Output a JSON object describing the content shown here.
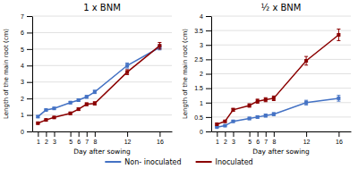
{
  "chart_data": [
    {
      "type": "line",
      "title": "1 x BNM",
      "x": [
        1,
        2,
        3,
        5,
        6,
        7,
        8,
        12,
        16
      ],
      "xlabel": "Day after sowing",
      "ylabel": "Length of the main root (cm)",
      "xlim": [
        0.3,
        17.5
      ],
      "xticks": [
        1,
        2,
        3,
        5,
        6,
        7,
        8,
        12,
        16
      ],
      "ylim": [
        0,
        7
      ],
      "yticks": [
        0,
        1,
        2,
        3,
        4,
        5,
        6,
        7
      ],
      "grid": "y",
      "legend": "bottom",
      "marker": "square",
      "series": [
        {
          "name": "Non- inoculated",
          "color": "#4472C4",
          "values": [
            0.9,
            1.3,
            1.4,
            1.75,
            1.9,
            2.1,
            2.4,
            4.0,
            5.1
          ],
          "errors": [
            0.05,
            0.05,
            0.05,
            0.07,
            0.07,
            0.08,
            0.1,
            0.15,
            0.15
          ]
        },
        {
          "name": "Inoculated",
          "color": "#8B0000",
          "values": [
            0.5,
            0.7,
            0.85,
            1.1,
            1.35,
            1.65,
            1.7,
            3.6,
            5.2
          ],
          "errors": [
            0.05,
            0.05,
            0.05,
            0.07,
            0.07,
            0.08,
            0.1,
            0.15,
            0.2
          ]
        }
      ]
    },
    {
      "type": "line",
      "title": "½ x BNM",
      "x": [
        1,
        2,
        3,
        5,
        6,
        7,
        8,
        12,
        16
      ],
      "xlabel": "Day after sowing",
      "ylabel": "Length of the main root (cm)",
      "xlim": [
        0.3,
        17.5
      ],
      "xticks": [
        1,
        2,
        3,
        5,
        6,
        7,
        8,
        12,
        16
      ],
      "ylim": [
        0,
        4
      ],
      "yticks": [
        0,
        0.5,
        1.0,
        1.5,
        2.0,
        2.5,
        3.0,
        3.5,
        4.0
      ],
      "grid": "y",
      "marker": "square",
      "series": [
        {
          "name": "Non- inoculated",
          "color": "#4472C4",
          "values": [
            0.15,
            0.2,
            0.35,
            0.45,
            0.5,
            0.55,
            0.6,
            1.0,
            1.15
          ],
          "errors": [
            0.02,
            0.02,
            0.03,
            0.04,
            0.04,
            0.05,
            0.05,
            0.08,
            0.1
          ]
        },
        {
          "name": "Inoculated",
          "color": "#8B0000",
          "values": [
            0.25,
            0.35,
            0.75,
            0.9,
            1.05,
            1.1,
            1.15,
            2.45,
            3.35
          ],
          "errors": [
            0.03,
            0.03,
            0.05,
            0.06,
            0.07,
            0.07,
            0.08,
            0.15,
            0.2
          ]
        }
      ]
    }
  ]
}
